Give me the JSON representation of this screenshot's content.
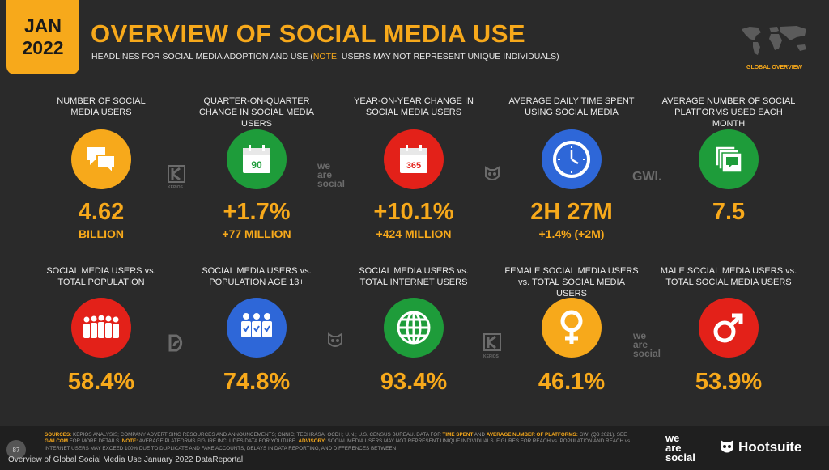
{
  "badge": {
    "month": "JAN",
    "year": "2022"
  },
  "header": {
    "title": "OVERVIEW OF SOCIAL MEDIA USE",
    "subtitle_pre": "HEADLINES FOR SOCIAL MEDIA ADOPTION AND USE (",
    "subtitle_note": "NOTE:",
    "subtitle_post": " USERS MAY NOT REPRESENT UNIQUE INDIVIDUALS)",
    "region": "GLOBAL OVERVIEW"
  },
  "row1": [
    {
      "label": "NUMBER OF SOCIAL MEDIA USERS",
      "value": "4.62",
      "sub": "BILLION",
      "color": "#f7a91b",
      "icon": "chat-bubbles-icon"
    },
    {
      "label": "QUARTER-ON-QUARTER CHANGE IN SOCIAL MEDIA USERS",
      "value": "+1.7%",
      "sub": "+77 MILLION",
      "color": "#1e9c3a",
      "icon": "calendar-90-icon",
      "icon_text": "90"
    },
    {
      "label": "YEAR-ON-YEAR CHANGE IN SOCIAL MEDIA USERS",
      "value": "+10.1%",
      "sub": "+424 MILLION",
      "color": "#e32119",
      "icon": "calendar-365-icon",
      "icon_text": "365"
    },
    {
      "label": "AVERAGE DAILY TIME SPENT USING SOCIAL MEDIA",
      "value": "2H 27M",
      "sub": "+1.4% (+2M)",
      "color": "#2e67d8",
      "icon": "clock-icon"
    },
    {
      "label": "AVERAGE NUMBER OF SOCIAL PLATFORMS USED EACH MONTH",
      "value": "7.5",
      "sub": "",
      "color": "#1e9c3a",
      "icon": "stacked-cards-icon"
    }
  ],
  "row2": [
    {
      "label": "SOCIAL MEDIA USERS vs. TOTAL POPULATION",
      "value": "58.4%",
      "color": "#e32119",
      "icon": "crowd-icon"
    },
    {
      "label": "SOCIAL MEDIA USERS vs. POPULATION AGE 13+",
      "value": "74.8%",
      "color": "#2e67d8",
      "icon": "group-check-icon"
    },
    {
      "label": "SOCIAL MEDIA USERS vs. TOTAL INTERNET USERS",
      "value": "93.4%",
      "color": "#1e9c3a",
      "icon": "globe-icon"
    },
    {
      "label": "FEMALE SOCIAL MEDIA USERS vs. TOTAL SOCIAL MEDIA USERS",
      "value": "46.1%",
      "color": "#f7a91b",
      "icon": "female-symbol-icon"
    },
    {
      "label": "MALE SOCIAL MEDIA USERS vs. TOTAL SOCIAL MEDIA USERS",
      "value": "53.9%",
      "color": "#e32119",
      "icon": "male-symbol-icon"
    }
  ],
  "watermarks": {
    "kepios": "KEPIOS",
    "gwi": "GWI.",
    "we": "we",
    "are": "are",
    "social": "social"
  },
  "footer": {
    "sources_label": "SOURCES:",
    "sources_text": "KEPIOS ANALYSIS; COMPANY ADVERTISING RESOURCES AND ANNOUNCEMENTS; CNNIC; TECHRASA; OCDH; U.N.; U.S. CENSUS BUREAU. DATA FOR",
    "tsu": "TIME SPENT",
    "and": "AND",
    "anp": "AVERAGE NUMBER OF PLATFORMS:",
    "gwi_text": "GWI (Q3 2021). SEE",
    "gwi_link": "GWI.COM",
    "gwi_more": "FOR MORE DETAILS.",
    "note_label": "NOTE:",
    "note_text": "AVERAGE PLATFORMS FIGURE INCLUDES DATA FOR YOUTUBE.",
    "adv_label": "ADVISORY:",
    "adv_text": "SOCIAL MEDIA USERS MAY NOT REPRESENT UNIQUE INDIVIDUALS. FIGURES FOR REACH vs. POPULATION AND REACH vs. INTERNET USERS MAY EXCEED 100% DUE TO DUPLICATE AND FAKE ACCOUNTS, DELAYS IN DATA REPORTING, AND DIFFERENCES BETWEEN",
    "page": "87",
    "caption": "Overview of Global Social Media Use January 2022 DataReportal",
    "brand_hs": "Hootsuite"
  }
}
